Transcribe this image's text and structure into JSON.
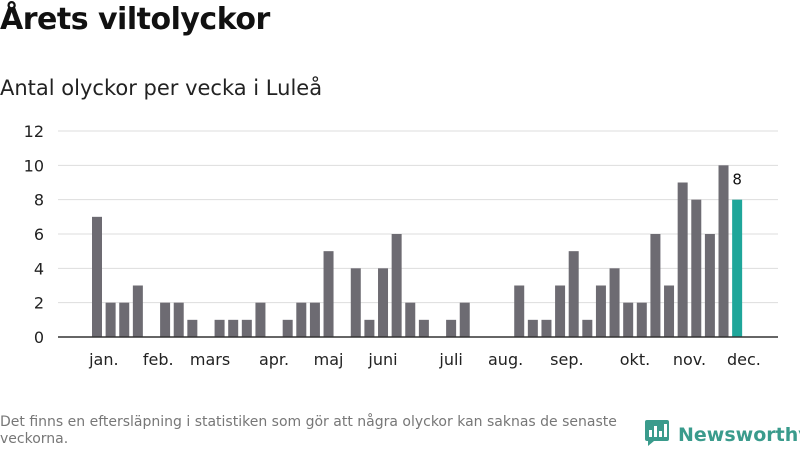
{
  "title": "Årets viltolyckor",
  "subtitle": "Antal olyckor per vecka i Luleå",
  "footnote": "Det finns en eftersläpning i statistiken som gör att några olyckor kan saknas de senaste veckorna.",
  "brand": "Newsworthy",
  "colors": {
    "bar": "#6d6b72",
    "highlight": "#1fa69a",
    "grid": "#dddddd",
    "axis": "#333333",
    "brand": "#3a9b8c"
  },
  "chart_data": {
    "type": "bar",
    "x": [
      1,
      2,
      3,
      4,
      5,
      6,
      7,
      8,
      9,
      10,
      11,
      12,
      13,
      14,
      15,
      16,
      17,
      18,
      19,
      20,
      21,
      22,
      23,
      24,
      25,
      26,
      27,
      28,
      29,
      30,
      31,
      32,
      33,
      34,
      35,
      36,
      37,
      38,
      39,
      40,
      41,
      42,
      43,
      44,
      45,
      46,
      47,
      48,
      49
    ],
    "values": [
      7,
      2,
      2,
      3,
      0,
      2,
      2,
      1,
      0,
      1,
      1,
      1,
      2,
      0,
      1,
      2,
      2,
      5,
      0,
      4,
      1,
      4,
      6,
      2,
      1,
      0,
      1,
      2,
      0,
      0,
      0,
      3,
      1,
      1,
      3,
      5,
      1,
      3,
      4,
      2,
      2,
      6,
      3,
      9,
      8,
      6,
      10,
      8,
      null
    ],
    "highlight_index": 47,
    "data_labels": [
      {
        "index": 47,
        "text": "8"
      }
    ],
    "yticks": [
      0,
      2,
      4,
      6,
      8,
      10,
      12
    ],
    "ylim": [
      0,
      12
    ],
    "month_labels": [
      {
        "label": "jan.",
        "x": 1.5
      },
      {
        "label": "feb.",
        "x": 5.5
      },
      {
        "label": "mars",
        "x": 9.3
      },
      {
        "label": "apr.",
        "x": 14.0
      },
      {
        "label": "maj",
        "x": 18.0
      },
      {
        "label": "juni",
        "x": 22.0
      },
      {
        "label": "juli",
        "x": 27.0
      },
      {
        "label": "aug.",
        "x": 31.0
      },
      {
        "label": "sep.",
        "x": 35.5
      },
      {
        "label": "okt.",
        "x": 40.5
      },
      {
        "label": "nov.",
        "x": 44.5
      },
      {
        "label": "dec.",
        "x": 48.5
      }
    ],
    "grid": true,
    "xlabel": "",
    "ylabel": ""
  }
}
